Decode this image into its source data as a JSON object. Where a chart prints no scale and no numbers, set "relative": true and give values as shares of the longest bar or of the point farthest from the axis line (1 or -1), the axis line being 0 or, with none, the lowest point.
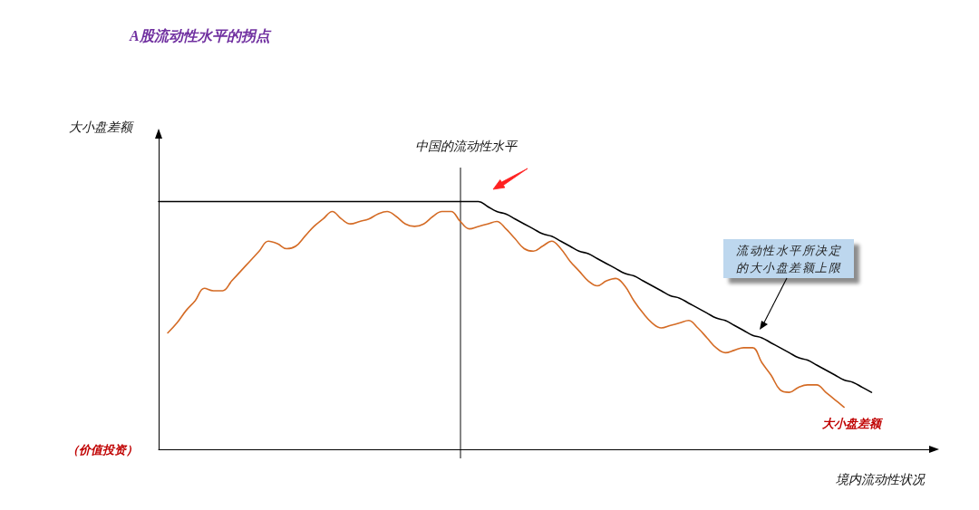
{
  "chart_data": {
    "type": "line",
    "title": "A股流动性水平的拐点",
    "xlabel": "境内流动性状况",
    "relative": true,
    "categories": [
      null,
      null,
      null,
      null,
      null,
      null,
      null,
      null,
      null,
      null,
      null,
      null,
      null,
      null,
      null,
      null,
      null,
      null,
      null,
      null,
      null,
      null,
      null,
      null,
      null,
      null,
      null,
      null,
      null,
      null,
      null,
      null,
      null,
      null,
      null,
      null,
      null,
      null,
      null,
      null,
      null,
      null,
      null,
      null,
      null,
      null,
      null,
      null,
      null,
      null,
      null,
      null,
      null,
      null,
      null,
      null,
      null,
      null,
      null,
      null,
      null,
      null,
      null,
      null,
      null,
      null,
      null,
      null,
      null,
      null,
      null,
      null,
      null,
      null,
      null,
      null,
      null,
      null,
      null,
      null,
      null,
      null,
      null,
      null,
      null,
      null
    ],
    "series": [
      {
        "color": "#000000",
        "values": [
          1,
          1,
          1,
          1,
          1,
          1,
          1,
          1,
          1,
          1,
          1,
          1,
          1,
          1,
          1,
          1,
          1,
          1,
          1,
          1,
          1,
          1,
          1,
          1,
          1,
          1,
          1,
          1,
          1,
          1,
          1,
          1,
          1,
          1,
          1,
          1,
          0.98,
          0.96,
          0.95,
          0.93,
          0.91,
          0.89,
          0.87,
          0.86,
          0.84,
          0.82,
          0.8,
          0.79,
          0.77,
          0.75,
          0.73,
          0.71,
          0.7,
          0.68,
          0.66,
          0.64,
          0.62,
          0.61,
          0.59,
          0.57,
          0.55,
          0.53,
          0.52,
          0.5,
          0.48,
          0.46,
          0.45,
          0.43,
          0.41,
          0.39,
          0.37,
          0.36,
          0.34,
          0.32,
          0.3,
          0.28,
          0.27,
          0.25,
          0.23,
          null,
          null,
          null,
          null,
          null,
          null,
          null
        ]
      },
      {
        "name": "大小盘差额",
        "color": "#d46b25",
        "values": [
          null,
          0.47,
          0.51,
          0.56,
          0.6,
          0.65,
          0.64,
          0.64,
          0.68,
          0.72,
          0.76,
          0.8,
          0.84,
          0.83,
          0.81,
          0.82,
          0.86,
          0.9,
          0.93,
          0.96,
          0.93,
          0.91,
          0.92,
          0.93,
          0.95,
          0.96,
          0.94,
          0.91,
          0.9,
          0.91,
          0.94,
          0.96,
          0.96,
          0.92,
          0.89,
          0.9,
          0.91,
          0.92,
          0.89,
          0.85,
          0.81,
          0.8,
          0.82,
          0.84,
          0.81,
          0.76,
          0.72,
          0.68,
          0.66,
          0.68,
          0.69,
          0.66,
          0.6,
          0.55,
          0.51,
          0.49,
          0.5,
          0.51,
          0.52,
          0.49,
          0.45,
          0.41,
          0.39,
          0.4,
          0.41,
          0.41,
          0.35,
          0.3,
          0.24,
          0.23,
          0.25,
          0.26,
          0.26,
          0.23,
          0.2,
          0.17,
          null,
          null,
          null,
          null,
          null,
          null,
          null,
          null,
          null,
          null
        ]
      }
    ],
    "annotations": [
      "大小盘差额",
      "（价值投资）",
      "流动性水平所决定的大小盘差额上限",
      "中国的流动性水平"
    ]
  }
}
